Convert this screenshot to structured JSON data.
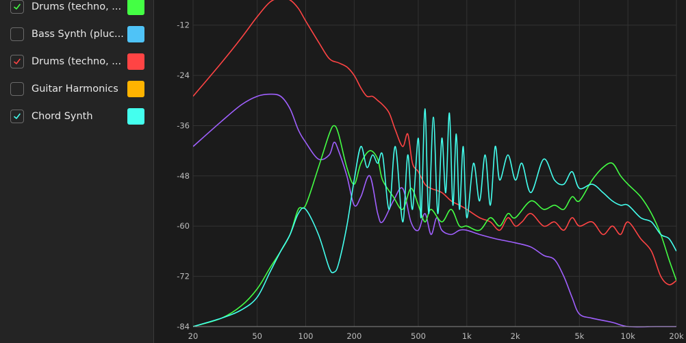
{
  "sidebar": {
    "items": [
      {
        "label": "Drums (techno, ...",
        "checked": true,
        "color": "#44ff44"
      },
      {
        "label": "Bass Synth (pluc...",
        "checked": false,
        "color": "#4fc3f7"
      },
      {
        "label": "Drums (techno, ...",
        "checked": true,
        "color": "#ff4444"
      },
      {
        "label": "Guitar Harmonics",
        "checked": false,
        "color": "#ffb300"
      },
      {
        "label": "Chord Synth",
        "checked": true,
        "color": "#44ffee"
      }
    ]
  },
  "chart_data": {
    "type": "line",
    "xscale": "log",
    "xlim": [
      20,
      20000
    ],
    "ylim": [
      -84,
      -6
    ],
    "x_ticks": [
      {
        "value": 20,
        "label": "20"
      },
      {
        "value": 50,
        "label": "50"
      },
      {
        "value": 100,
        "label": "100"
      },
      {
        "value": 200,
        "label": "200"
      },
      {
        "value": 500,
        "label": "500"
      },
      {
        "value": 1000,
        "label": "1k"
      },
      {
        "value": 2000,
        "label": "2k"
      },
      {
        "value": 5000,
        "label": "5k"
      },
      {
        "value": 10000,
        "label": "10k"
      },
      {
        "value": 20000,
        "label": "20k"
      }
    ],
    "y_ticks": [
      {
        "value": -12,
        "label": "-12"
      },
      {
        "value": -24,
        "label": "-24"
      },
      {
        "value": -36,
        "label": "-36"
      },
      {
        "value": -48,
        "label": "-48"
      },
      {
        "value": -60,
        "label": "-60"
      },
      {
        "value": -72,
        "label": "-72"
      },
      {
        "value": -84,
        "label": "-84"
      }
    ],
    "grid": true,
    "series": [
      {
        "color": "#ff4444",
        "points": [
          [
            20,
            -29
          ],
          [
            30,
            -21
          ],
          [
            40,
            -15
          ],
          [
            50,
            -10
          ],
          [
            60,
            -6.5
          ],
          [
            70,
            -5.5
          ],
          [
            80,
            -6
          ],
          [
            90,
            -8
          ],
          [
            100,
            -11
          ],
          [
            120,
            -16
          ],
          [
            140,
            -20
          ],
          [
            160,
            -21
          ],
          [
            180,
            -22
          ],
          [
            200,
            -24
          ],
          [
            220,
            -27
          ],
          [
            240,
            -29
          ],
          [
            260,
            -29
          ],
          [
            280,
            -30
          ],
          [
            300,
            -31
          ],
          [
            330,
            -33
          ],
          [
            360,
            -37
          ],
          [
            400,
            -41
          ],
          [
            430,
            -38
          ],
          [
            460,
            -45
          ],
          [
            500,
            -47
          ],
          [
            550,
            -50
          ],
          [
            600,
            -51
          ],
          [
            700,
            -52
          ],
          [
            800,
            -54
          ],
          [
            900,
            -55
          ],
          [
            1000,
            -56
          ],
          [
            1200,
            -58
          ],
          [
            1400,
            -59
          ],
          [
            1600,
            -61
          ],
          [
            1800,
            -58
          ],
          [
            2000,
            -60
          ],
          [
            2200,
            -59
          ],
          [
            2500,
            -57
          ],
          [
            3000,
            -60
          ],
          [
            3500,
            -59
          ],
          [
            4000,
            -61
          ],
          [
            4500,
            -58
          ],
          [
            5000,
            -60
          ],
          [
            6000,
            -59
          ],
          [
            7000,
            -62
          ],
          [
            8000,
            -60
          ],
          [
            9000,
            -62
          ],
          [
            10000,
            -59
          ],
          [
            12000,
            -63
          ],
          [
            14000,
            -66
          ],
          [
            16000,
            -72
          ],
          [
            18000,
            -74
          ],
          [
            20000,
            -73
          ]
        ]
      },
      {
        "color": "#a060ff",
        "points": [
          [
            20,
            -41
          ],
          [
            30,
            -35
          ],
          [
            40,
            -31
          ],
          [
            50,
            -29
          ],
          [
            60,
            -28.5
          ],
          [
            70,
            -29
          ],
          [
            80,
            -32
          ],
          [
            90,
            -37
          ],
          [
            100,
            -40
          ],
          [
            120,
            -44
          ],
          [
            140,
            -43
          ],
          [
            150,
            -40
          ],
          [
            160,
            -42
          ],
          [
            180,
            -48
          ],
          [
            200,
            -55
          ],
          [
            220,
            -53
          ],
          [
            250,
            -48
          ],
          [
            280,
            -57
          ],
          [
            300,
            -59
          ],
          [
            350,
            -54
          ],
          [
            400,
            -51
          ],
          [
            450,
            -59
          ],
          [
            500,
            -61
          ],
          [
            550,
            -57
          ],
          [
            600,
            -62
          ],
          [
            650,
            -58
          ],
          [
            700,
            -61
          ],
          [
            800,
            -62
          ],
          [
            900,
            -61
          ],
          [
            1000,
            -61
          ],
          [
            1200,
            -62
          ],
          [
            1500,
            -63
          ],
          [
            2000,
            -64
          ],
          [
            2500,
            -65
          ],
          [
            3000,
            -67
          ],
          [
            3500,
            -68
          ],
          [
            4000,
            -72
          ],
          [
            4500,
            -77
          ],
          [
            5000,
            -81
          ],
          [
            6000,
            -82
          ],
          [
            8000,
            -83
          ],
          [
            10000,
            -84
          ],
          [
            15000,
            -84
          ],
          [
            20000,
            -84
          ]
        ]
      },
      {
        "color": "#44ff44",
        "points": [
          [
            20,
            -84
          ],
          [
            30,
            -82
          ],
          [
            40,
            -79
          ],
          [
            50,
            -75
          ],
          [
            60,
            -70
          ],
          [
            70,
            -66
          ],
          [
            80,
            -62
          ],
          [
            90,
            -56
          ],
          [
            100,
            -55
          ],
          [
            120,
            -46
          ],
          [
            140,
            -38
          ],
          [
            150,
            -36
          ],
          [
            160,
            -38
          ],
          [
            180,
            -46
          ],
          [
            200,
            -50
          ],
          [
            220,
            -45
          ],
          [
            250,
            -42
          ],
          [
            280,
            -44
          ],
          [
            300,
            -49
          ],
          [
            350,
            -53
          ],
          [
            400,
            -56
          ],
          [
            450,
            -51
          ],
          [
            500,
            -55
          ],
          [
            550,
            -59
          ],
          [
            600,
            -56
          ],
          [
            700,
            -59
          ],
          [
            800,
            -56
          ],
          [
            900,
            -60
          ],
          [
            1000,
            -60
          ],
          [
            1200,
            -61
          ],
          [
            1400,
            -58
          ],
          [
            1600,
            -60
          ],
          [
            1800,
            -57
          ],
          [
            2000,
            -58
          ],
          [
            2500,
            -54
          ],
          [
            3000,
            -56
          ],
          [
            3500,
            -55
          ],
          [
            4000,
            -56
          ],
          [
            4500,
            -53
          ],
          [
            5000,
            -54
          ],
          [
            6000,
            -49
          ],
          [
            7000,
            -46
          ],
          [
            8000,
            -45
          ],
          [
            9000,
            -48
          ],
          [
            10000,
            -50
          ],
          [
            12000,
            -53
          ],
          [
            14000,
            -57
          ],
          [
            16000,
            -62
          ],
          [
            18000,
            -68
          ],
          [
            20000,
            -73
          ]
        ]
      },
      {
        "color": "#44ffee",
        "points": [
          [
            20,
            -84
          ],
          [
            30,
            -82
          ],
          [
            40,
            -80
          ],
          [
            50,
            -77
          ],
          [
            60,
            -71
          ],
          [
            70,
            -66
          ],
          [
            80,
            -62
          ],
          [
            90,
            -57
          ],
          [
            100,
            -56
          ],
          [
            120,
            -62
          ],
          [
            140,
            -70
          ],
          [
            150,
            -71
          ],
          [
            160,
            -69
          ],
          [
            180,
            -60
          ],
          [
            200,
            -49
          ],
          [
            220,
            -41
          ],
          [
            240,
            -46
          ],
          [
            260,
            -43
          ],
          [
            280,
            -45
          ],
          [
            300,
            -43
          ],
          [
            330,
            -56
          ],
          [
            360,
            -41
          ],
          [
            400,
            -59
          ],
          [
            430,
            -43
          ],
          [
            460,
            -56
          ],
          [
            500,
            -39
          ],
          [
            520,
            -58
          ],
          [
            550,
            -32
          ],
          [
            580,
            -57
          ],
          [
            620,
            -34
          ],
          [
            660,
            -57
          ],
          [
            700,
            -39
          ],
          [
            740,
            -52
          ],
          [
            780,
            -33
          ],
          [
            820,
            -55
          ],
          [
            860,
            -38
          ],
          [
            900,
            -56
          ],
          [
            950,
            -41
          ],
          [
            1000,
            -58
          ],
          [
            1100,
            -45
          ],
          [
            1200,
            -54
          ],
          [
            1300,
            -43
          ],
          [
            1400,
            -55
          ],
          [
            1500,
            -41
          ],
          [
            1600,
            -49
          ],
          [
            1800,
            -43
          ],
          [
            2000,
            -49
          ],
          [
            2200,
            -45
          ],
          [
            2500,
            -52
          ],
          [
            3000,
            -44
          ],
          [
            3500,
            -49
          ],
          [
            4000,
            -50
          ],
          [
            4500,
            -47
          ],
          [
            5000,
            -51
          ],
          [
            6000,
            -50
          ],
          [
            7000,
            -52
          ],
          [
            8000,
            -54
          ],
          [
            9000,
            -55
          ],
          [
            10000,
            -55
          ],
          [
            12000,
            -58
          ],
          [
            14000,
            -59
          ],
          [
            16000,
            -62
          ],
          [
            18000,
            -63
          ],
          [
            20000,
            -66
          ]
        ]
      }
    ]
  }
}
